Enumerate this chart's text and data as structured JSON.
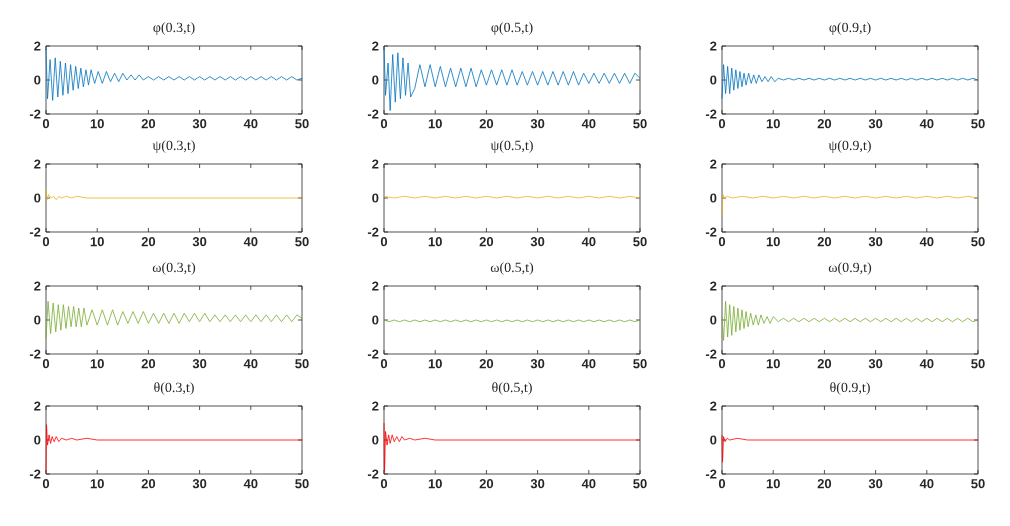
{
  "chart_data": [
    {
      "type": "line",
      "title": "φ(0.3,t)",
      "color": "#0072bd",
      "xlim": [
        0,
        50
      ],
      "ylim": [
        -2,
        2
      ],
      "xticks": [
        0,
        10,
        20,
        30,
        40,
        50
      ],
      "yticks": [
        -2,
        0,
        2
      ],
      "x": [
        0,
        0.3,
        0.8,
        1.3,
        1.8,
        2.3,
        2.8,
        3.3,
        3.8,
        4.3,
        4.8,
        5.3,
        5.8,
        6.3,
        6.8,
        7.3,
        7.8,
        8.3,
        8.8,
        9.5,
        10.2,
        11,
        11.8,
        12.6,
        13.4,
        14.2,
        15,
        15.8,
        16.6,
        17.4,
        18.2,
        19,
        20,
        21,
        22,
        23,
        24,
        25,
        26,
        27,
        28,
        29,
        30,
        31,
        32,
        33,
        34,
        35,
        36,
        37,
        38,
        39,
        40,
        41,
        42,
        43,
        44,
        45,
        46,
        47,
        48,
        49,
        50
      ],
      "values": [
        1.8,
        -1.1,
        1.2,
        -1.2,
        1.3,
        -1.0,
        1.1,
        -0.9,
        1.0,
        -0.8,
        0.9,
        -0.6,
        0.8,
        -0.5,
        0.7,
        -0.4,
        0.6,
        -0.3,
        0.6,
        -0.2,
        0.5,
        -0.2,
        0.5,
        -0.1,
        0.4,
        -0.1,
        0.4,
        0,
        0.3,
        0,
        0.3,
        0,
        0.2,
        0,
        0.2,
        0,
        0.2,
        0,
        0.2,
        0,
        0.2,
        0,
        0.2,
        0,
        0.2,
        0,
        0.2,
        0,
        0.2,
        0,
        0.2,
        0,
        0.2,
        0,
        0.2,
        0,
        0.2,
        0,
        0.2,
        0,
        0.2,
        0,
        0.1
      ]
    },
    {
      "type": "line",
      "title": "φ(0.5,t)",
      "color": "#0072bd",
      "xlim": [
        0,
        50
      ],
      "ylim": [
        -2,
        2
      ],
      "xticks": [
        0,
        10,
        20,
        30,
        40,
        50
      ],
      "yticks": [
        -2,
        0,
        2
      ],
      "x": [
        0,
        0.3,
        0.8,
        1.2,
        1.7,
        2.2,
        2.7,
        3.2,
        3.7,
        4.2,
        4.7,
        5.2,
        6,
        7,
        8,
        9,
        10,
        11,
        12,
        13,
        14,
        15,
        16,
        17,
        18,
        19,
        20,
        21,
        22,
        23,
        24,
        25,
        26,
        27,
        28,
        29,
        30,
        31,
        32,
        33,
        34,
        35,
        36,
        37,
        38,
        39,
        40,
        41,
        42,
        43,
        44,
        45,
        46,
        47,
        48,
        49,
        50
      ],
      "values": [
        2,
        -0.9,
        1.0,
        -1.8,
        1.5,
        -1.3,
        1.6,
        -1.1,
        1.3,
        -0.9,
        1.0,
        -1.0,
        -0.5,
        0.9,
        -0.4,
        0.9,
        -0.4,
        0.8,
        -0.4,
        0.7,
        -0.4,
        0.7,
        -0.4,
        0.7,
        -0.4,
        0.6,
        -0.3,
        0.6,
        -0.3,
        0.6,
        -0.3,
        0.6,
        -0.3,
        0.5,
        -0.3,
        0.5,
        -0.3,
        0.5,
        -0.3,
        0.5,
        -0.3,
        0.5,
        -0.3,
        0.5,
        -0.3,
        0.4,
        -0.2,
        0.4,
        -0.2,
        0.4,
        -0.2,
        0.4,
        -0.2,
        0.4,
        -0.2,
        0.4,
        0.1
      ]
    },
    {
      "type": "line",
      "title": "φ(0.9,t)",
      "color": "#0072bd",
      "xlim": [
        0,
        50
      ],
      "ylim": [
        -2,
        2
      ],
      "xticks": [
        0,
        10,
        20,
        30,
        40,
        50
      ],
      "yticks": [
        -2,
        0,
        2
      ],
      "x": [
        0,
        0.3,
        0.7,
        1.1,
        1.5,
        1.9,
        2.3,
        2.7,
        3.1,
        3.5,
        3.9,
        4.3,
        4.7,
        5.2,
        5.7,
        6.2,
        6.7,
        7.2,
        7.8,
        8.4,
        9,
        9.6,
        10.3,
        11,
        12,
        13,
        14,
        15,
        16,
        17,
        18,
        19,
        20,
        21,
        22,
        23,
        24,
        25,
        26,
        27,
        28,
        29,
        30,
        31,
        32,
        33,
        34,
        35,
        36,
        37,
        38,
        39,
        40,
        41,
        42,
        43,
        44,
        45,
        46,
        47,
        48,
        49,
        50
      ],
      "values": [
        -1.1,
        0.9,
        -0.8,
        0.8,
        -0.8,
        0.7,
        -0.6,
        0.6,
        -0.5,
        0.5,
        -0.4,
        0.4,
        -0.3,
        0.4,
        -0.2,
        0.3,
        -0.2,
        0.3,
        -0.1,
        0.2,
        -0.1,
        0.2,
        -0.1,
        0.1,
        0,
        0.1,
        0,
        0.1,
        0,
        0.1,
        0,
        0.1,
        0,
        0.1,
        0,
        0.1,
        0,
        0.1,
        0,
        0.1,
        0,
        0.1,
        0,
        0.1,
        0,
        0.1,
        0,
        0.1,
        0,
        0.1,
        0,
        0.1,
        0,
        0.1,
        0,
        0.1,
        0,
        0.1,
        0,
        0.1,
        0,
        0.1,
        0
      ]
    },
    {
      "type": "line",
      "title": "ψ(0.3,t)",
      "color": "#edb120",
      "xlim": [
        0,
        50
      ],
      "ylim": [
        -2,
        2
      ],
      "xticks": [
        0,
        10,
        20,
        30,
        40,
        50
      ],
      "yticks": [
        -2,
        0,
        2
      ],
      "x": [
        0,
        0.2,
        0.5,
        1,
        1.5,
        2,
        2.5,
        3,
        4,
        5,
        6,
        8,
        50
      ],
      "values": [
        0.5,
        -0.1,
        0.2,
        0,
        0.1,
        -0.1,
        0.1,
        0,
        0.1,
        0,
        0.1,
        0,
        0
      ]
    },
    {
      "type": "line",
      "title": "ψ(0.5,t)",
      "color": "#edb120",
      "xlim": [
        0,
        50
      ],
      "ylim": [
        -2,
        2
      ],
      "xticks": [
        0,
        10,
        20,
        30,
        40,
        50
      ],
      "yticks": [
        -2,
        0,
        2
      ],
      "x": [
        0,
        2,
        4,
        6,
        8,
        10,
        12,
        14,
        16,
        18,
        20,
        22,
        24,
        26,
        28,
        30,
        32,
        34,
        36,
        38,
        40,
        42,
        44,
        46,
        48,
        50
      ],
      "values": [
        0.1,
        0,
        0.1,
        0,
        0.1,
        0,
        0.1,
        0,
        0.1,
        0,
        0.1,
        0,
        0.1,
        0,
        0.1,
        0,
        0.1,
        0,
        0.1,
        0,
        0.1,
        0,
        0.1,
        0,
        0.1,
        0
      ]
    },
    {
      "type": "line",
      "title": "ψ(0.9,t)",
      "color": "#edb120",
      "xlim": [
        0,
        50
      ],
      "ylim": [
        -2,
        2
      ],
      "xticks": [
        0,
        10,
        20,
        30,
        40,
        50
      ],
      "yticks": [
        -2,
        0,
        2
      ],
      "x": [
        0,
        0.2,
        0.5,
        1,
        2,
        4,
        6,
        8,
        10,
        12,
        14,
        16,
        18,
        20,
        22,
        24,
        26,
        28,
        30,
        32,
        34,
        36,
        38,
        40,
        42,
        44,
        46,
        48,
        50
      ],
      "values": [
        -1.0,
        0.2,
        0,
        0.1,
        0,
        0.1,
        0,
        0.1,
        0,
        0.1,
        0,
        0.1,
        0,
        0.1,
        0,
        0.1,
        0,
        0.1,
        0,
        0.1,
        0,
        0.1,
        0,
        0.1,
        0,
        0.1,
        0,
        0.1,
        0
      ]
    },
    {
      "type": "line",
      "title": "ω(0.3,t)",
      "color": "#77ac30",
      "xlim": [
        0,
        50
      ],
      "ylim": [
        -2,
        2
      ],
      "xticks": [
        0,
        10,
        20,
        30,
        40,
        50
      ],
      "yticks": [
        -2,
        0,
        2
      ],
      "x": [
        0,
        0.4,
        0.9,
        1.4,
        1.9,
        2.4,
        2.9,
        3.4,
        3.9,
        4.4,
        4.9,
        5.4,
        5.9,
        6.4,
        6.9,
        7.4,
        8,
        9,
        10,
        11,
        12,
        13,
        14,
        15,
        16,
        17,
        18,
        19,
        20,
        21,
        22,
        23,
        24,
        25,
        26,
        27,
        28,
        29,
        30,
        31,
        32,
        33,
        34,
        35,
        36,
        37,
        38,
        39,
        40,
        41,
        42,
        43,
        44,
        45,
        46,
        47,
        48,
        49,
        50
      ],
      "values": [
        -1.1,
        1.1,
        -0.8,
        1.0,
        -0.7,
        0.9,
        -0.6,
        0.9,
        -0.5,
        0.8,
        -0.4,
        0.8,
        -0.4,
        0.7,
        -0.4,
        0.7,
        -0.3,
        0.6,
        -0.3,
        0.6,
        -0.3,
        0.6,
        -0.3,
        0.5,
        -0.2,
        0.5,
        -0.2,
        0.5,
        -0.2,
        0.4,
        -0.2,
        0.4,
        -0.2,
        0.4,
        -0.2,
        0.4,
        -0.1,
        0.4,
        -0.1,
        0.4,
        -0.1,
        0.3,
        -0.1,
        0.3,
        -0.1,
        0.3,
        -0.1,
        0.3,
        -0.1,
        0.3,
        -0.1,
        0.3,
        -0.1,
        0.3,
        -0.1,
        0.3,
        -0.1,
        0.3,
        0.1
      ]
    },
    {
      "type": "line",
      "title": "ω(0.5,t)",
      "color": "#77ac30",
      "xlim": [
        0,
        50
      ],
      "ylim": [
        -2,
        2
      ],
      "xticks": [
        0,
        10,
        20,
        30,
        40,
        50
      ],
      "yticks": [
        -2,
        0,
        2
      ],
      "x": [
        0,
        1,
        2,
        3,
        4,
        5,
        6,
        7,
        8,
        9,
        10,
        11,
        12,
        13,
        14,
        15,
        16,
        17,
        18,
        19,
        20,
        21,
        22,
        23,
        24,
        25,
        26,
        27,
        28,
        29,
        30,
        31,
        32,
        33,
        34,
        35,
        36,
        37,
        38,
        39,
        40,
        41,
        42,
        43,
        44,
        45,
        46,
        47,
        48,
        49,
        50
      ],
      "values": [
        0,
        -0.1,
        0,
        -0.1,
        0,
        -0.1,
        0,
        -0.1,
        0,
        -0.1,
        0,
        -0.1,
        0,
        -0.1,
        0,
        -0.1,
        0,
        -0.1,
        0,
        -0.1,
        0,
        -0.1,
        0,
        -0.1,
        0,
        -0.1,
        0,
        -0.1,
        0,
        -0.1,
        0,
        -0.1,
        0,
        -0.1,
        0,
        -0.1,
        0,
        -0.1,
        0,
        -0.1,
        0,
        -0.1,
        0,
        -0.1,
        0,
        -0.1,
        0,
        -0.1,
        0,
        -0.1,
        0
      ]
    },
    {
      "type": "line",
      "title": "ω(0.9,t)",
      "color": "#77ac30",
      "xlim": [
        0,
        50
      ],
      "ylim": [
        -2,
        2
      ],
      "xticks": [
        0,
        10,
        20,
        30,
        40,
        50
      ],
      "yticks": [
        -2,
        0,
        2
      ],
      "x": [
        0,
        0.3,
        0.7,
        1.1,
        1.5,
        1.9,
        2.3,
        2.7,
        3.1,
        3.5,
        3.9,
        4.3,
        4.7,
        5.1,
        5.6,
        6.1,
        6.6,
        7.1,
        7.6,
        8.2,
        8.8,
        9.4,
        10,
        11,
        12,
        13,
        14,
        15,
        16,
        17,
        18,
        19,
        20,
        21,
        22,
        23,
        24,
        25,
        26,
        27,
        28,
        29,
        30,
        31,
        32,
        33,
        34,
        35,
        36,
        37,
        38,
        39,
        40,
        41,
        42,
        43,
        44,
        45,
        46,
        47,
        48,
        49,
        50
      ],
      "values": [
        0.2,
        -1.2,
        1.1,
        -1.0,
        0.9,
        -0.9,
        0.8,
        -0.7,
        0.7,
        -0.6,
        0.6,
        -0.5,
        0.5,
        -0.4,
        0.4,
        -0.3,
        0.3,
        -0.3,
        0.3,
        -0.2,
        0.2,
        -0.2,
        0.2,
        -0.1,
        0.1,
        -0.1,
        0.1,
        -0.1,
        0.1,
        -0.1,
        0.1,
        -0.1,
        0.1,
        -0.1,
        0.1,
        -0.1,
        0.1,
        -0.1,
        0.1,
        -0.1,
        0.1,
        -0.1,
        0.1,
        -0.1,
        0.1,
        -0.1,
        0.1,
        -0.1,
        0.1,
        -0.1,
        0.1,
        -0.1,
        0.1,
        -0.1,
        0.1,
        -0.1,
        0.1,
        -0.1,
        0.1,
        -0.1,
        0.1,
        -0.1,
        0
      ]
    },
    {
      "type": "line",
      "title": "θ(0.3,t)",
      "color": "#ff0000",
      "xlim": [
        0,
        50
      ],
      "ylim": [
        -2,
        2
      ],
      "xticks": [
        0,
        10,
        20,
        30,
        40,
        50
      ],
      "yticks": [
        -2,
        0,
        2
      ],
      "x": [
        0,
        0.1,
        0.3,
        0.6,
        0.9,
        1.2,
        1.6,
        2,
        2.5,
        3,
        4,
        5,
        6,
        8,
        10,
        50
      ],
      "values": [
        -1.9,
        0.9,
        -0.3,
        0.3,
        -0.2,
        0.2,
        -0.1,
        0.2,
        -0.1,
        0.1,
        0,
        0.1,
        0,
        0.1,
        0,
        0
      ]
    },
    {
      "type": "line",
      "title": "θ(0.5,t)",
      "color": "#ff0000",
      "xlim": [
        0,
        50
      ],
      "ylim": [
        -2,
        2
      ],
      "xticks": [
        0,
        10,
        20,
        30,
        40,
        50
      ],
      "yticks": [
        -2,
        0,
        2
      ],
      "x": [
        0,
        0.1,
        0.3,
        0.6,
        0.9,
        1.2,
        1.6,
        2,
        2.5,
        3,
        3.5,
        4,
        5,
        6,
        8,
        10,
        50
      ],
      "values": [
        1.0,
        -1.9,
        0.5,
        -0.3,
        0.3,
        -0.2,
        0.3,
        -0.1,
        0.2,
        -0.1,
        0.2,
        0,
        0.1,
        0,
        0.1,
        0,
        0
      ]
    },
    {
      "type": "line",
      "title": "θ(0.9,t)",
      "color": "#ff0000",
      "xlim": [
        0,
        50
      ],
      "ylim": [
        -2,
        2
      ],
      "xticks": [
        0,
        10,
        20,
        30,
        40,
        50
      ],
      "yticks": [
        -2,
        0,
        2
      ],
      "x": [
        0,
        0.1,
        0.3,
        0.6,
        1,
        1.5,
        3,
        5,
        50
      ],
      "values": [
        0.3,
        -1.3,
        0.2,
        -0.1,
        0.1,
        0,
        0.1,
        0,
        0
      ]
    }
  ]
}
